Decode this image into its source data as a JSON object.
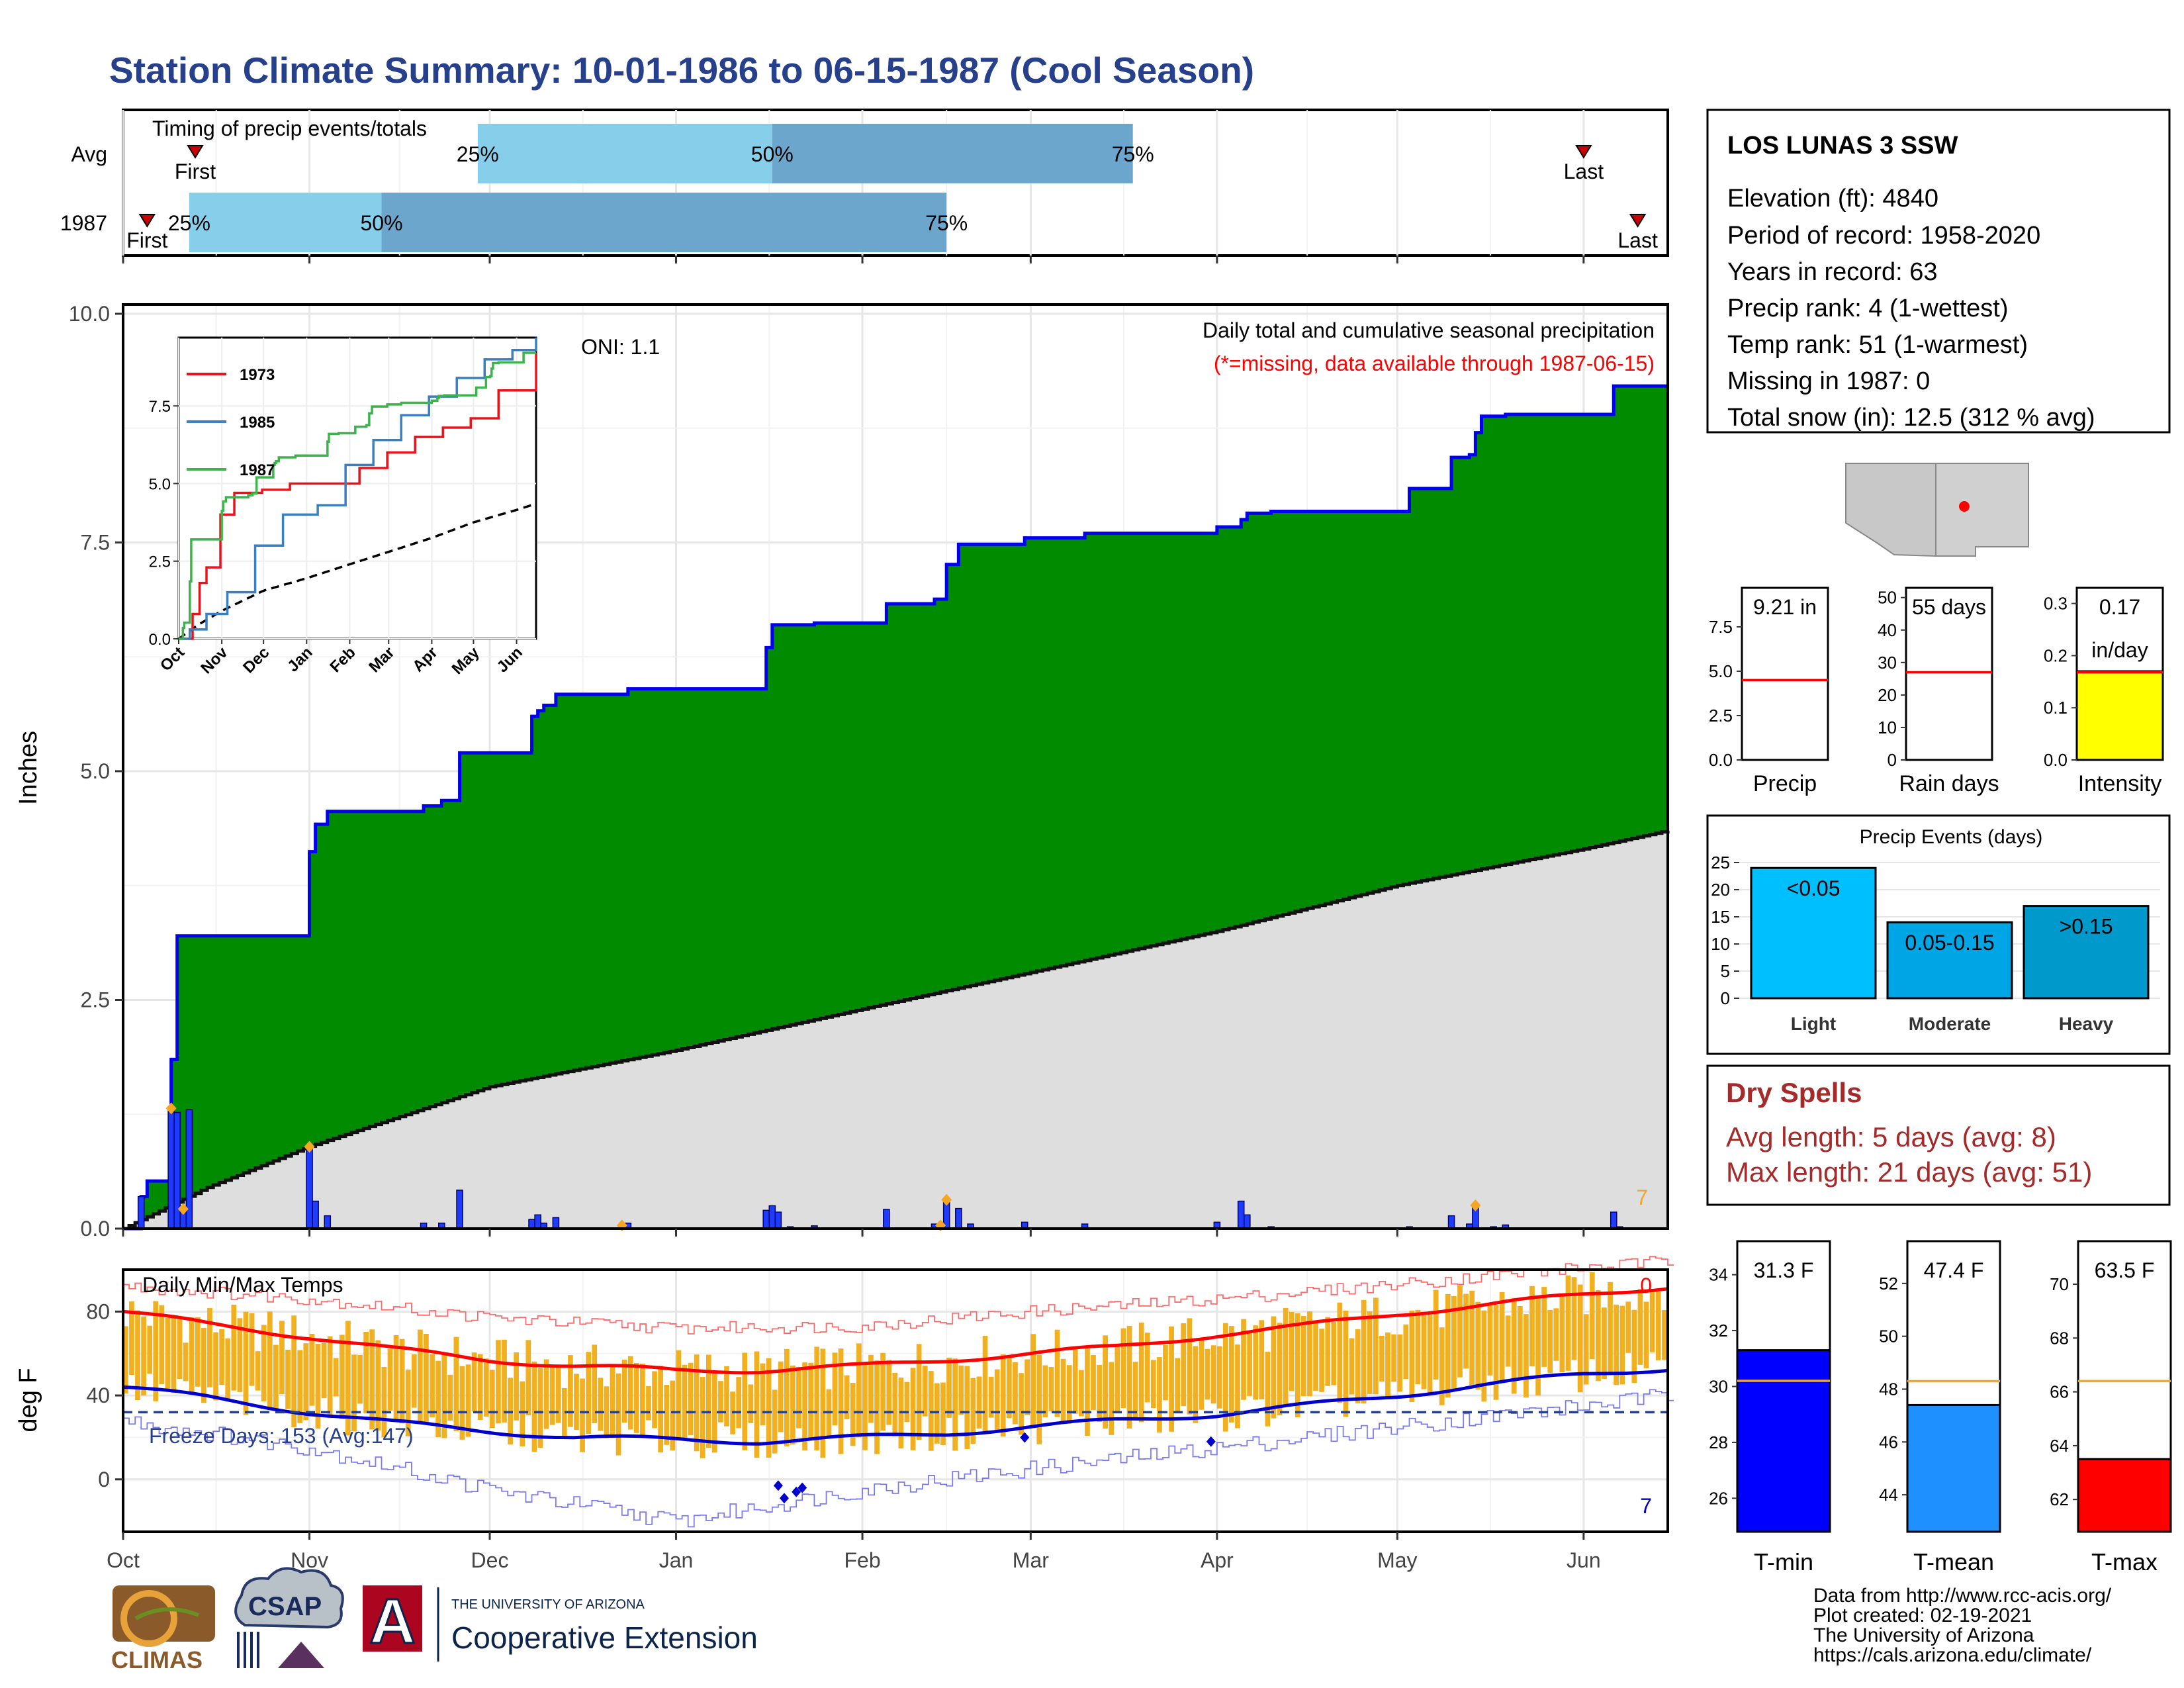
{
  "header": {
    "title": "Station Climate Summary: 10-01-1986 to 06-15-1987 (Cool Season)"
  },
  "colors": {
    "title": "#27408b",
    "cum_fill": "#008b00",
    "cum_line": "#0000ee",
    "avg_fill": "#dedede",
    "daily_bar": "#1e3cff",
    "quartile_light": "#87ceeb",
    "quartile_dark": "#6ca6cd",
    "temp_bar": "#f0b020",
    "tmax_line": "#ff0000",
    "tmin_line": "#0000cd",
    "dry_spells": "#a52a2a",
    "light": "#00bfff",
    "moderate": "#00a5e5",
    "heavy": "#0099cc",
    "intensity": "#ffff00",
    "tmin_bar": "#0000ff",
    "tmean_bar": "#1e90ff",
    "tmax_bar": "#ff0000",
    "avg_line_orange": "#f5a623",
    "last_marker": "#cc0000"
  },
  "timing": {
    "title": "Timing of precip events/totals",
    "rows": [
      {
        "label": "Avg",
        "first": {
          "date": "1986-10-13",
          "label": "First"
        },
        "last": {
          "date": "1987-06-01",
          "label": "Last"
        },
        "q25": {
          "date": "1986-11-29",
          "label": "25%"
        },
        "q50": {
          "date": "1987-01-17",
          "label": "50%"
        },
        "q75": {
          "date": "1987-03-18",
          "label": "75%"
        }
      },
      {
        "label": "1987",
        "first": {
          "date": "1986-10-05",
          "label": "First"
        },
        "last": {
          "date": "1987-06-10",
          "label": "Last"
        },
        "q25": {
          "date": "1986-10-12",
          "label": "25%"
        },
        "q50": {
          "date": "1986-11-13",
          "label": "50%"
        },
        "q75": {
          "date": "1987-02-15",
          "label": "75%"
        }
      }
    ]
  },
  "axis": {
    "start": "1986-10-01",
    "end": "1987-06-15",
    "month_ticks": [
      {
        "label": "Oct",
        "date": "1986-10-01"
      },
      {
        "label": "Nov",
        "date": "1986-11-01"
      },
      {
        "label": "Dec",
        "date": "1986-12-01"
      },
      {
        "label": "Jan",
        "date": "1987-01-01"
      },
      {
        "label": "Feb",
        "date": "1987-02-01"
      },
      {
        "label": "Mar",
        "date": "1987-03-01"
      },
      {
        "label": "Apr",
        "date": "1987-04-01"
      },
      {
        "label": "May",
        "date": "1987-05-01"
      },
      {
        "label": "Jun",
        "date": "1987-06-01"
      }
    ]
  },
  "precip": {
    "ylabel": "Inches",
    "ylim": [
      0,
      10
    ],
    "yticks": [
      "0.0",
      "2.5",
      "5.0",
      "7.5",
      "10.0"
    ],
    "title": "Daily total and cumulative seasonal precipitation",
    "note": "(*=missing, data available through 1987-06-15)",
    "oni": "ONI: 1.1",
    "corner_value": "7"
  },
  "inset": {
    "ylim": [
      0,
      9.7
    ],
    "yticks": [
      "0.0",
      "2.5",
      "5.0",
      "7.5"
    ],
    "xticks": [
      "Oct",
      "Nov",
      "Dec",
      "Jan",
      "Feb",
      "Mar",
      "Apr",
      "May",
      "Jun"
    ],
    "legend": [
      {
        "label": "1973",
        "color": "#e8141c"
      },
      {
        "label": "1985",
        "color": "#3a7fc2"
      },
      {
        "label": "1987",
        "color": "#3cb44b"
      }
    ]
  },
  "temps": {
    "ylabel": "deg F",
    "title": "Daily Min/Max Temps",
    "ylim": [
      -25,
      100
    ],
    "yticks": [
      "0",
      "40",
      "80"
    ],
    "freeze_text": "Freeze Days: 153 (Avg:147)",
    "freeze_level": 32,
    "corner_top": "0",
    "corner_bottom": "7"
  },
  "station": {
    "name": "LOS LUNAS 3 SSW",
    "lines": [
      "Elevation (ft): 4840",
      "Period of record: 1958-2020",
      "Years in record: 63",
      "Precip rank: 4 (1-wettest)",
      "Temp rank: 51 (1-warmest)",
      "Missing in 1987: 0",
      "Total snow (in): 12.5 (312 % avg)"
    ]
  },
  "mini_bars": [
    {
      "value_label": "9.21 in",
      "xlabel": "Precip",
      "value": 9.21,
      "avg": 4.5,
      "ylim": [
        0,
        9.7
      ],
      "yticks": [
        "0.0",
        "2.5",
        "5.0",
        "7.5"
      ],
      "fill": "#ffffff"
    },
    {
      "value_label": "55 days",
      "xlabel": "Rain days",
      "value": 55,
      "avg": 27,
      "ylim": [
        0,
        53
      ],
      "yticks": [
        "0",
        "10",
        "20",
        "30",
        "40",
        "50"
      ],
      "fill": "#ffffff"
    },
    {
      "value_label": "0.17",
      "value_label2": "in/day",
      "xlabel": "Intensity",
      "value": 0.17,
      "avg": 0.168,
      "ylim": [
        0,
        0.33
      ],
      "yticks": [
        "0.0",
        "0.1",
        "0.2",
        "0.3"
      ],
      "fill": "#ffff00"
    }
  ],
  "precip_events": {
    "title": "Precip Events (days)",
    "ylim": [
      0,
      25
    ],
    "yticks": [
      "0",
      "5",
      "10",
      "15",
      "20",
      "25"
    ],
    "categories": [
      "Light",
      "Moderate",
      "Heavy"
    ],
    "bar_labels": [
      "<0.05",
      "0.05-0.15",
      ">0.15"
    ],
    "values": [
      24,
      14,
      17
    ]
  },
  "dry_spells": {
    "title": "Dry Spells",
    "lines": [
      "Avg length: 5 days (avg: 8)",
      "Max length: 21 days (avg: 51)"
    ]
  },
  "temp_summary": [
    {
      "value_label": "31.3 F",
      "xlabel": "T-min",
      "value": 31.3,
      "avg": 30.2,
      "ylim": [
        24.8,
        35.2
      ],
      "yticks": [
        "26",
        "28",
        "30",
        "32",
        "34"
      ],
      "fill": "#0000ff"
    },
    {
      "value_label": "47.4 F",
      "xlabel": "T-mean",
      "value": 47.4,
      "avg": 48.3,
      "ylim": [
        42.6,
        53.6
      ],
      "yticks": [
        "44",
        "46",
        "48",
        "50",
        "52"
      ],
      "fill": "#1e90ff"
    },
    {
      "value_label": "63.5 F",
      "xlabel": "T-max",
      "value": 63.5,
      "avg": 66.4,
      "ylim": [
        60.8,
        71.6
      ],
      "yticks": [
        "62",
        "64",
        "66",
        "68",
        "70"
      ],
      "fill": "#ff0000"
    }
  ],
  "footer": {
    "lines": [
      "Data from http://www.rcc-acis.org/",
      "Plot created: 02-19-2021",
      "The University of Arizona",
      "https://cals.arizona.edu/climate/"
    ],
    "logos": {
      "climas": "CLIMAS",
      "csap": "CSAP",
      "ua_small": "THE UNIVERSITY OF ARIZONA",
      "ua_big": "Cooperative Extension",
      "ua_letter": "A"
    }
  },
  "chart_data": [
    {
      "type": "area",
      "title": "Daily total and cumulative seasonal precipitation",
      "ylabel": "Inches",
      "ylim": [
        0,
        10
      ],
      "series": [
        {
          "name": "cumulative",
          "x": [
            "1986-10-01",
            "1986-10-04",
            "1986-10-05",
            "1986-10-09",
            "1986-10-10",
            "1986-10-11",
            "1986-10-12",
            "1986-11-01",
            "1986-11-02",
            "1986-11-04",
            "1986-11-20",
            "1986-11-23",
            "1986-11-26",
            "1986-11-27",
            "1986-12-08",
            "1986-12-09",
            "1986-12-10",
            "1986-12-12",
            "1986-12-24",
            "1987-01-16",
            "1987-01-17",
            "1987-01-20",
            "1987-01-24",
            "1987-02-05",
            "1987-02-13",
            "1987-02-15",
            "1987-02-17",
            "1987-02-19",
            "1987-02-28",
            "1987-03-10",
            "1987-04-01",
            "1987-04-05",
            "1987-04-06",
            "1987-04-10",
            "1987-05-03",
            "1987-05-10",
            "1987-05-13",
            "1987-05-14",
            "1987-05-15",
            "1987-05-17",
            "1987-05-19",
            "1987-06-06",
            "1987-06-15"
          ],
          "values": [
            0.0,
            0.35,
            0.52,
            1.85,
            3.2,
            3.2,
            3.2,
            4.12,
            4.42,
            4.56,
            4.62,
            4.68,
            5.2,
            5.2,
            5.6,
            5.66,
            5.72,
            5.84,
            5.9,
            6.35,
            6.6,
            6.6,
            6.62,
            6.83,
            6.88,
            7.26,
            7.48,
            7.48,
            7.55,
            7.6,
            7.67,
            7.75,
            7.82,
            7.84,
            8.09,
            8.43,
            8.46,
            8.7,
            8.88,
            8.88,
            8.9,
            9.21,
            9.21
          ]
        },
        {
          "name": "average",
          "x": [
            "1986-10-01",
            "1986-10-15",
            "1986-11-01",
            "1986-12-01",
            "1987-01-01",
            "1987-02-01",
            "1987-03-01",
            "1987-04-01",
            "1987-05-01",
            "1987-06-01",
            "1987-06-15"
          ],
          "values": [
            0.0,
            0.45,
            0.9,
            1.55,
            1.95,
            2.4,
            2.8,
            3.25,
            3.75,
            4.15,
            4.35
          ]
        }
      ]
    },
    {
      "type": "bar",
      "name": "daily precipitation",
      "x": [
        "1986-10-04",
        "1986-10-09",
        "1986-10-10",
        "1986-10-11",
        "1986-10-12",
        "1986-11-01",
        "1986-11-02",
        "1986-11-04",
        "1986-11-20",
        "1986-11-23",
        "1986-11-26",
        "1986-12-08",
        "1986-12-09",
        "1986-12-10",
        "1986-12-12",
        "1986-12-24",
        "1987-01-16",
        "1987-01-17",
        "1987-01-18",
        "1987-01-20",
        "1987-01-24",
        "1987-02-05",
        "1987-02-13",
        "1987-02-15",
        "1987-02-17",
        "1987-02-19",
        "1987-02-28",
        "1987-03-10",
        "1987-04-01",
        "1987-04-05",
        "1987-04-06",
        "1987-04-10",
        "1987-05-03",
        "1987-05-10",
        "1987-05-13",
        "1987-05-14",
        "1987-05-17",
        "1987-05-19",
        "1987-06-06",
        "1987-06-07"
      ],
      "values": [
        0.35,
        1.3,
        1.27,
        0.2,
        1.3,
        0.88,
        0.3,
        0.14,
        0.06,
        0.06,
        0.42,
        0.1,
        0.15,
        0.06,
        0.12,
        0.06,
        0.2,
        0.25,
        0.18,
        0.02,
        0.03,
        0.21,
        0.05,
        0.3,
        0.22,
        0.05,
        0.07,
        0.05,
        0.07,
        0.3,
        0.15,
        0.02,
        0.02,
        0.14,
        0.05,
        0.24,
        0.02,
        0.04,
        0.18,
        0.02
      ],
      "snow_marker_dates": [
        "1986-10-09",
        "1986-10-11",
        "1986-11-01",
        "1986-12-23",
        "1987-02-14",
        "1987-02-15",
        "1987-05-14"
      ]
    },
    {
      "type": "line",
      "title": "Timing of precip events/totals",
      "categories": [
        "Avg",
        "1987"
      ],
      "series": [
        {
          "name": "First",
          "values": [
            "1986-10-13",
            "1986-10-05"
          ]
        },
        {
          "name": "25%",
          "values": [
            "1986-11-29",
            "1986-10-12"
          ]
        },
        {
          "name": "50%",
          "values": [
            "1987-01-17",
            "1986-11-13"
          ]
        },
        {
          "name": "75%",
          "values": [
            "1987-03-18",
            "1987-02-15"
          ]
        },
        {
          "name": "Last",
          "values": [
            "1987-06-01",
            "1987-06-10"
          ]
        }
      ]
    },
    {
      "type": "line",
      "title": "Daily Min/Max Temps",
      "ylabel": "deg F",
      "ylim": [
        -25,
        100
      ],
      "series": [
        {
          "name": "avg max",
          "x": [
            "1986-10-01",
            "1986-10-15",
            "1986-11-01",
            "1986-11-15",
            "1986-12-01",
            "1986-12-15",
            "1987-01-01",
            "1987-01-15",
            "1987-02-01",
            "1987-02-15",
            "1987-03-01",
            "1987-03-15",
            "1987-04-01",
            "1987-04-15",
            "1987-05-01",
            "1987-05-15",
            "1987-06-01",
            "1987-06-15"
          ],
          "values": [
            80,
            74,
            68,
            62,
            57,
            54,
            52,
            52,
            54,
            57,
            60,
            63,
            69,
            73,
            79,
            83,
            88,
            92
          ]
        },
        {
          "name": "avg min",
          "x": [
            "1986-10-01",
            "1986-10-15",
            "1986-11-01",
            "1986-11-15",
            "1986-12-01",
            "1986-12-15",
            "1987-01-01",
            "1987-01-15",
            "1987-02-01",
            "1987-02-15",
            "1987-03-01",
            "1987-03-15",
            "1987-04-01",
            "1987-04-15",
            "1987-05-01",
            "1987-05-15",
            "1987-06-01",
            "1987-06-15"
          ],
          "values": [
            44,
            39,
            32,
            27,
            23,
            20,
            19,
            18,
            20,
            22,
            25,
            28,
            31,
            35,
            40,
            45,
            50,
            53
          ]
        },
        {
          "name": "record high",
          "x": [
            "1986-10-01",
            "1986-11-01",
            "1986-12-01",
            "1987-01-01",
            "1987-02-01",
            "1987-03-01",
            "1987-04-01",
            "1987-05-01",
            "1987-06-01",
            "1987-06-15"
          ],
          "values": [
            92,
            86,
            77,
            72,
            73,
            80,
            86,
            93,
            101,
            104
          ]
        },
        {
          "name": "record low",
          "x": [
            "1986-10-01",
            "1986-11-01",
            "1986-12-01",
            "1987-01-01",
            "1987-02-01",
            "1987-03-01",
            "1987-04-01",
            "1987-05-01",
            "1987-06-01",
            "1987-06-15"
          ],
          "values": [
            28,
            15,
            -5,
            -20,
            -5,
            5,
            15,
            25,
            35,
            40
          ]
        }
      ],
      "extreme_min_markers": [
        {
          "date": "1987-01-18",
          "value": -3
        },
        {
          "date": "1987-01-19",
          "value": -9
        },
        {
          "date": "1987-01-21",
          "value": -6
        },
        {
          "date": "1987-01-22",
          "value": -4
        },
        {
          "date": "1987-02-28",
          "value": 20
        },
        {
          "date": "1987-03-31",
          "value": 18
        }
      ]
    },
    {
      "type": "bar",
      "title": "Precip Events (days)",
      "categories": [
        "Light",
        "Moderate",
        "Heavy"
      ],
      "values": [
        24,
        14,
        17
      ]
    }
  ]
}
